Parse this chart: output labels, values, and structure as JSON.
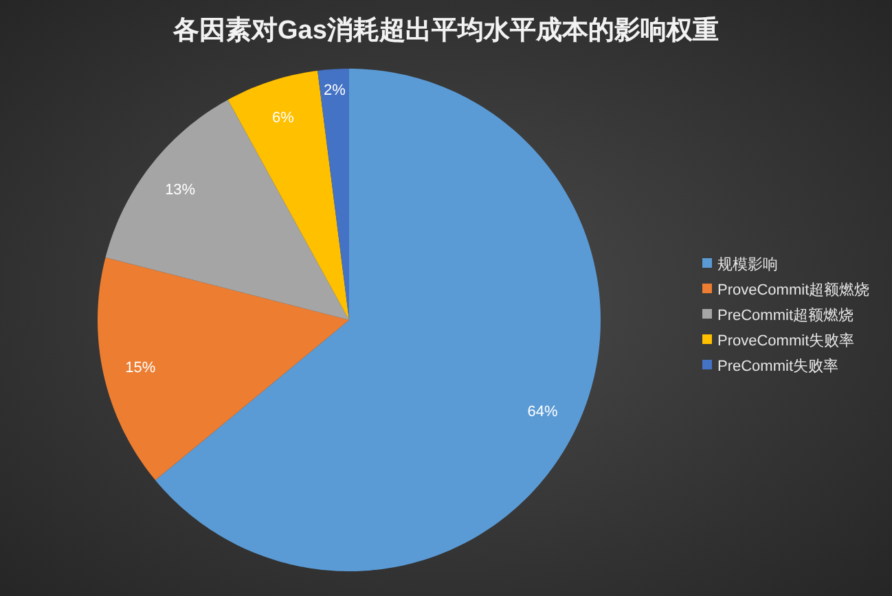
{
  "chart_data": {
    "type": "pie",
    "title": "各因素对Gas消耗超出平均水平成本的影响权重",
    "categories": [
      "规模影响",
      "ProveCommit超额燃烧",
      "PreCommit超额燃烧",
      "ProveCommit失败率",
      "PreCommit失败率"
    ],
    "values": [
      64,
      15,
      13,
      6,
      2
    ],
    "colors": [
      "#5b9bd5",
      "#ed7d31",
      "#a5a5a5",
      "#ffc000",
      "#4472c4"
    ],
    "value_labels": [
      "64%",
      "15%",
      "13%",
      "6%",
      "2%"
    ],
    "legend": "right"
  }
}
